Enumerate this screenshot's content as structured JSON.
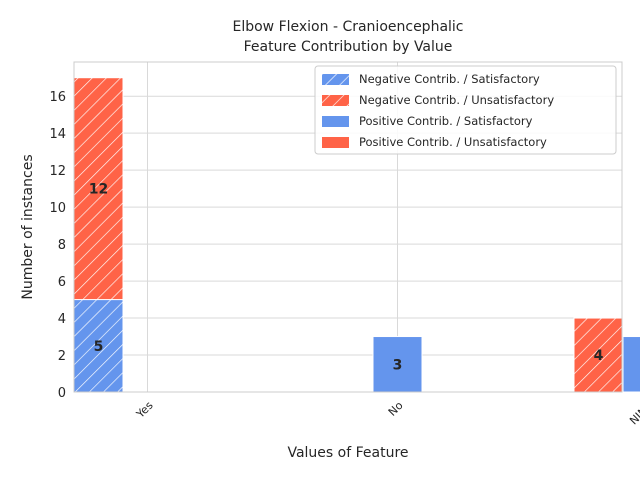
{
  "chart_data": {
    "type": "bar",
    "title": "Elbow Flexion - Cranioencephalic",
    "subtitle": "Feature Contribution by Value",
    "xlabel": "Values of Feature",
    "ylabel": "Number of instances",
    "categories": [
      "Yes",
      "No",
      "NINA"
    ],
    "ylim": [
      0,
      17.85
    ],
    "yticks": [
      0,
      2,
      4,
      6,
      8,
      10,
      12,
      14,
      16
    ],
    "grid": true,
    "legend_position": "top-right",
    "colors": {
      "satisfactory": "#6495ED",
      "unsatisfactory": "#FF6347"
    },
    "series": [
      {
        "name": "Negative Contrib. / Satisfactory",
        "group": "negative",
        "outcome": "satisfactory",
        "hatched": true,
        "values": [
          5,
          0,
          0
        ]
      },
      {
        "name": "Negative Contrib. / Unsatisfactory",
        "group": "negative",
        "outcome": "unsatisfactory",
        "hatched": true,
        "values": [
          12,
          0,
          4
        ]
      },
      {
        "name": "Positive Contrib. / Satisfactory",
        "group": "positive",
        "outcome": "satisfactory",
        "hatched": false,
        "values": [
          0,
          3,
          3
        ]
      },
      {
        "name": "Positive Contrib. / Unsatisfactory",
        "group": "positive",
        "outcome": "unsatisfactory",
        "hatched": false,
        "values": [
          0,
          0,
          0
        ]
      }
    ]
  }
}
